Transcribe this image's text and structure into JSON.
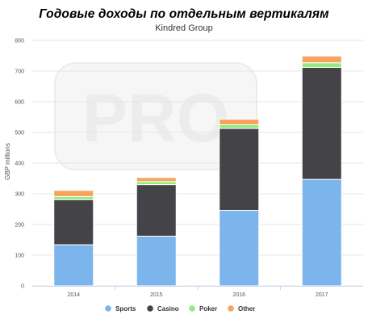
{
  "header": {
    "title": "Годовые доходы по отдельным вертикалям",
    "subtitle": "Kindred Group"
  },
  "watermark": {
    "text": "PRO"
  },
  "chart_data": {
    "type": "bar",
    "stacked": true,
    "categories": [
      "2014",
      "2015",
      "2016",
      "2017"
    ],
    "series": [
      {
        "name": "Sports",
        "color": "#7cb5ec",
        "values": [
          134,
          162,
          246,
          347
        ]
      },
      {
        "name": "Casino",
        "color": "#434348",
        "values": [
          147,
          168,
          267,
          365
        ]
      },
      {
        "name": "Poker",
        "color": "#90ed7d",
        "values": [
          10,
          10,
          12,
          15
        ]
      },
      {
        "name": "Other",
        "color": "#f7a35c",
        "values": [
          20,
          13,
          18,
          22
        ]
      }
    ],
    "ylabel": "GBP millions",
    "xlabel": "",
    "ylim": [
      0,
      800
    ],
    "yticks": [
      0,
      100,
      200,
      300,
      400,
      500,
      600,
      700,
      800
    ],
    "grid": true,
    "legend": "bottom"
  }
}
